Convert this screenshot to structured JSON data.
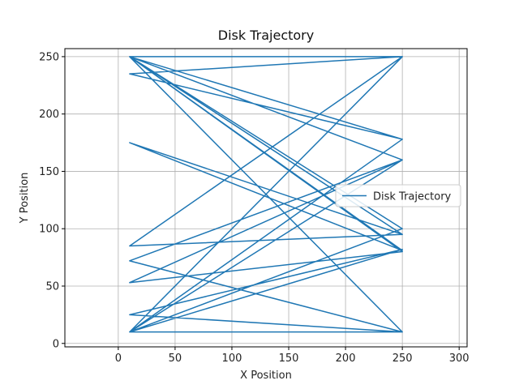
{
  "chart_data": {
    "type": "line",
    "title": "Disk Trajectory",
    "xlabel": "X Position",
    "ylabel": "Y Position",
    "xlim": [
      -47,
      307
    ],
    "ylim": [
      -3,
      257
    ],
    "xticks": [
      0,
      50,
      100,
      150,
      200,
      250,
      300
    ],
    "yticks": [
      0,
      50,
      100,
      150,
      200,
      250
    ],
    "grid": true,
    "legend": {
      "placement": "right",
      "entries": [
        "Disk Trajectory"
      ]
    },
    "series": [
      {
        "name": "Disk Trajectory",
        "color": "#1f77b4",
        "x": [
          10,
          250,
          10,
          250,
          10,
          250,
          10,
          250,
          10,
          250,
          10,
          250,
          10,
          250,
          10,
          250,
          10,
          250,
          10,
          250,
          10,
          250,
          10,
          250,
          10,
          250,
          10,
          250,
          10,
          250,
          10,
          250,
          10,
          250,
          10
        ],
        "y": [
          250,
          250,
          235,
          178,
          250,
          81,
          175,
          95,
          85,
          250,
          10,
          160,
          72,
          10,
          250,
          80,
          53,
          160,
          250,
          10,
          10,
          178,
          10,
          100,
          250,
          95,
          250,
          10,
          25,
          82,
          10,
          10,
          10,
          250,
          250
        ]
      }
    ]
  }
}
